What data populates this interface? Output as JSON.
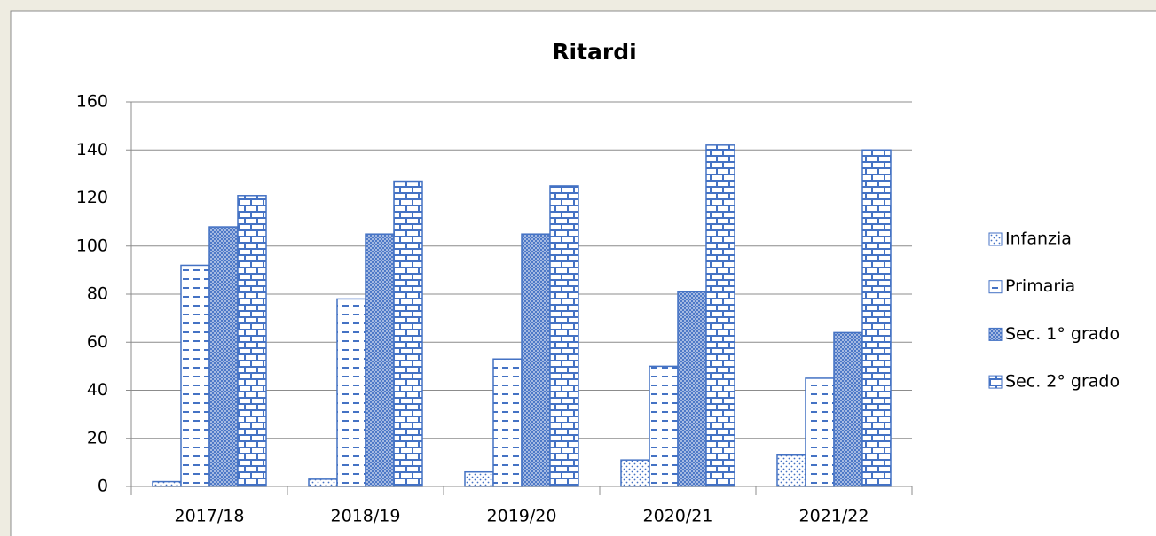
{
  "chart_data": {
    "type": "bar",
    "title": "Ritardi",
    "categories": [
      "2017/18",
      "2018/19",
      "2019/20",
      "2020/21",
      "2021/22"
    ],
    "series": [
      {
        "name": "Infanzia",
        "color": "#4472c4",
        "values": [
          2,
          3,
          6,
          11,
          13
        ]
      },
      {
        "name": "Primaria",
        "color": "#4472c4",
        "values": [
          92,
          78,
          53,
          50,
          45
        ]
      },
      {
        "name": "Sec. 1° grado",
        "color": "#4472c4",
        "values": [
          108,
          105,
          105,
          81,
          64
        ]
      },
      {
        "name": "Sec. 2° grado",
        "color": "#4472c4",
        "values": [
          121,
          127,
          125,
          142,
          140
        ]
      }
    ],
    "ylim": [
      0,
      160
    ],
    "yticks": [
      0,
      20,
      40,
      60,
      80,
      100,
      120,
      140,
      160
    ],
    "grid": true,
    "legend": "right"
  }
}
